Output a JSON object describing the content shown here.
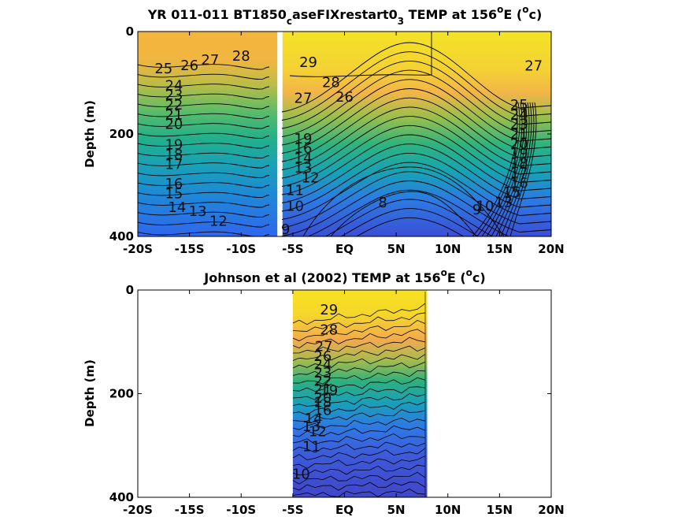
{
  "chart_data": [
    {
      "type": "heatmap",
      "title_main": "YR 011-011 BT1850",
      "title_sub1": "c",
      "title_mid": "aseFIXrestart0",
      "title_sub2": "3",
      "title_tail": " TEMP at 156",
      "title_sup1": "o",
      "title_unit_pre": "E (",
      "title_sup2": "o",
      "title_unit_post": "c)",
      "ylabel": "Depth (m)",
      "x_ticks": [
        "-20S",
        "-15S",
        "-10S",
        "-5S",
        "EQ",
        "5N",
        "10N",
        "15N",
        "20N"
      ],
      "x_values": [
        -20,
        -15,
        -10,
        -5,
        0,
        5,
        10,
        15,
        20
      ],
      "y_ticks": [
        "0",
        "200",
        "400"
      ],
      "y_values": [
        0,
        200,
        400
      ],
      "xlim": [
        -20,
        20
      ],
      "ylim": [
        0,
        400
      ],
      "y_reversed": true,
      "data_xranges": [
        [
          -20,
          -6.5
        ],
        [
          -6.0,
          20
        ]
      ],
      "contour_labels": [
        {
          "text": "28",
          "x": -10.0,
          "y": 48
        },
        {
          "text": "27",
          "x": -13.0,
          "y": 55
        },
        {
          "text": "26",
          "x": -15.0,
          "y": 66
        },
        {
          "text": "25",
          "x": -17.5,
          "y": 72
        },
        {
          "text": "24",
          "x": -16.5,
          "y": 105
        },
        {
          "text": "23",
          "x": -16.5,
          "y": 124
        },
        {
          "text": "22",
          "x": -16.5,
          "y": 143
        },
        {
          "text": "21",
          "x": -16.5,
          "y": 162
        },
        {
          "text": "20",
          "x": -16.5,
          "y": 181
        },
        {
          "text": "19",
          "x": -16.5,
          "y": 221
        },
        {
          "text": "18",
          "x": -16.5,
          "y": 240
        },
        {
          "text": "17",
          "x": -16.5,
          "y": 259
        },
        {
          "text": "16",
          "x": -16.5,
          "y": 297
        },
        {
          "text": "15",
          "x": -16.5,
          "y": 316
        },
        {
          "text": "14",
          "x": -16.2,
          "y": 343
        },
        {
          "text": "13",
          "x": -14.2,
          "y": 351
        },
        {
          "text": "12",
          "x": -12.2,
          "y": 370
        },
        {
          "text": "29",
          "x": -3.5,
          "y": 60
        },
        {
          "text": "28",
          "x": -1.3,
          "y": 99
        },
        {
          "text": "27",
          "x": -4.0,
          "y": 130
        },
        {
          "text": "26",
          "x": 0.0,
          "y": 128
        },
        {
          "text": "19",
          "x": -4.0,
          "y": 209
        },
        {
          "text": "16",
          "x": -4.0,
          "y": 228
        },
        {
          "text": "14",
          "x": -4.0,
          "y": 247
        },
        {
          "text": "13",
          "x": -4.0,
          "y": 266
        },
        {
          "text": "12",
          "x": -3.3,
          "y": 285
        },
        {
          "text": "11",
          "x": -4.8,
          "y": 310
        },
        {
          "text": "10",
          "x": -4.8,
          "y": 341
        },
        {
          "text": "9",
          "x": -5.7,
          "y": 386
        },
        {
          "text": "8",
          "x": 3.7,
          "y": 334
        },
        {
          "text": "9",
          "x": 12.8,
          "y": 348
        },
        {
          "text": "10",
          "x": 13.6,
          "y": 341
        },
        {
          "text": "27",
          "x": 18.3,
          "y": 67
        },
        {
          "text": "25",
          "x": 16.9,
          "y": 143
        },
        {
          "text": "24",
          "x": 16.9,
          "y": 162
        },
        {
          "text": "23",
          "x": 16.9,
          "y": 181
        },
        {
          "text": "21",
          "x": 16.9,
          "y": 200
        },
        {
          "text": "20",
          "x": 16.9,
          "y": 219
        },
        {
          "text": "19",
          "x": 16.9,
          "y": 238
        },
        {
          "text": "18",
          "x": 16.9,
          "y": 257
        },
        {
          "text": "17",
          "x": 16.9,
          "y": 276
        },
        {
          "text": "16",
          "x": 16.9,
          "y": 295
        },
        {
          "text": "15",
          "x": 16.2,
          "y": 314
        },
        {
          "text": "13",
          "x": 15.4,
          "y": 333
        }
      ]
    },
    {
      "type": "heatmap",
      "title_main": "Johnson et al (2002) TEMP at 156",
      "title_sup1": "o",
      "title_unit_pre": "E (",
      "title_sup2": "o",
      "title_unit_post": "c)",
      "ylabel": "Depth (m)",
      "x_ticks": [
        "-20S",
        "-15S",
        "-10S",
        "-5S",
        "EQ",
        "5N",
        "10N",
        "15N",
        "20N"
      ],
      "x_values": [
        -20,
        -15,
        -10,
        -5,
        0,
        5,
        10,
        15,
        20
      ],
      "y_ticks": [
        "0",
        "200",
        "400"
      ],
      "y_values": [
        0,
        200,
        400
      ],
      "xlim": [
        -20,
        20
      ],
      "ylim": [
        0,
        400
      ],
      "y_reversed": true,
      "data_xranges": [
        [
          -5.0,
          8.0
        ]
      ],
      "contour_labels": [
        {
          "text": "29",
          "x": -1.5,
          "y": 38
        },
        {
          "text": "28",
          "x": -1.5,
          "y": 77
        },
        {
          "text": "27",
          "x": -2.0,
          "y": 109
        },
        {
          "text": "26",
          "x": -2.1,
          "y": 128
        },
        {
          "text": "24",
          "x": -2.1,
          "y": 144
        },
        {
          "text": "23",
          "x": -2.1,
          "y": 160
        },
        {
          "text": "22",
          "x": -2.1,
          "y": 176
        },
        {
          "text": "21",
          "x": -2.1,
          "y": 192
        },
        {
          "text": "20",
          "x": -2.1,
          "y": 208
        },
        {
          "text": "19",
          "x": -1.5,
          "y": 194
        },
        {
          "text": "18",
          "x": -2.1,
          "y": 217
        },
        {
          "text": "16",
          "x": -2.1,
          "y": 232
        },
        {
          "text": "14",
          "x": -3.0,
          "y": 248
        },
        {
          "text": "13",
          "x": -3.2,
          "y": 263
        },
        {
          "text": "12",
          "x": -2.6,
          "y": 273
        },
        {
          "text": "11",
          "x": -3.2,
          "y": 302
        },
        {
          "text": "10",
          "x": -4.2,
          "y": 355
        }
      ]
    }
  ]
}
